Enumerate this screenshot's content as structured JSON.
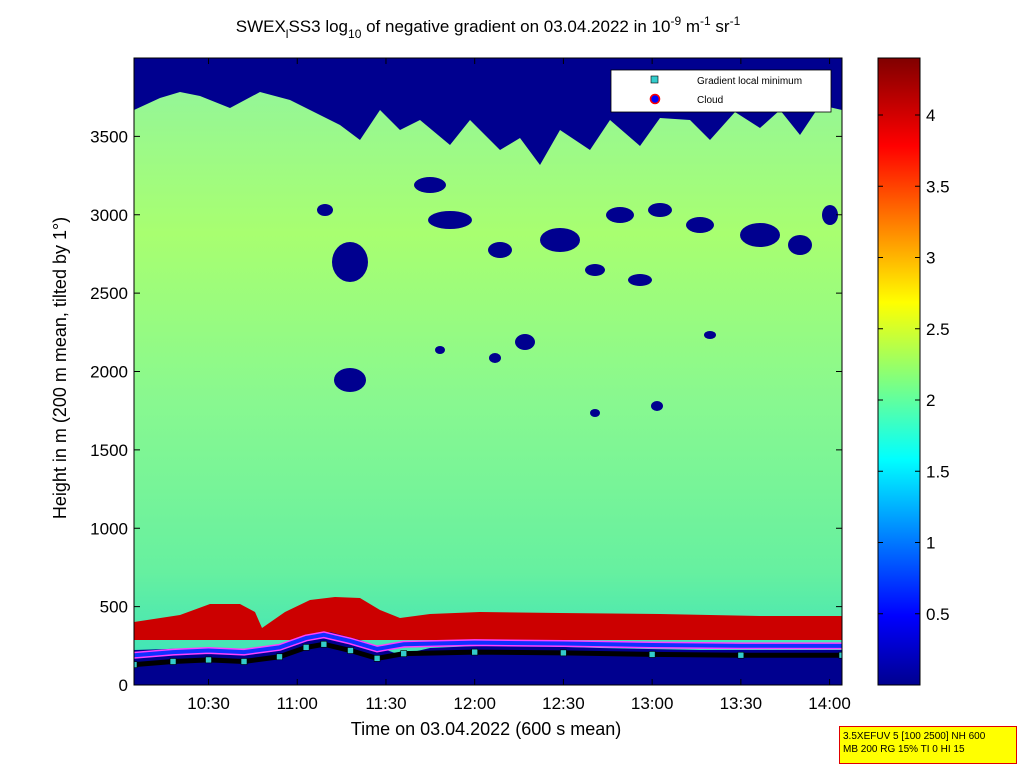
{
  "chart_data": {
    "type": "heatmap",
    "title": {
      "prefix": "SWEX",
      "subscript_1": "l",
      "mid": "SS3 log",
      "subscript_2": "10",
      "text": " of negative gradient on 03.04.2022 in 10",
      "superscript_1": "-9",
      "unit_mid": " m",
      "superscript_2": "-1",
      "unit_end": " sr",
      "superscript_3": "-1"
    },
    "xlabel": "Time on 03.04.2022 (600 s mean)",
    "ylabel": "Height in m (200 m mean, tilted by 1°)",
    "x_range_hours": [
      10.08,
      14.07
    ],
    "x_ticks": [
      {
        "label": "10:30",
        "value": 10.5
      },
      {
        "label": "11:00",
        "value": 11.0
      },
      {
        "label": "11:30",
        "value": 11.5
      },
      {
        "label": "12:00",
        "value": 12.0
      },
      {
        "label": "12:30",
        "value": 12.5
      },
      {
        "label": "13:00",
        "value": 13.0
      },
      {
        "label": "13:30",
        "value": 13.5
      },
      {
        "label": "14:00",
        "value": 14.0
      }
    ],
    "ylim": [
      0,
      4000
    ],
    "y_ticks": [
      {
        "label": "0",
        "value": 0
      },
      {
        "label": "500",
        "value": 500
      },
      {
        "label": "1000",
        "value": 1000
      },
      {
        "label": "1500",
        "value": 1500
      },
      {
        "label": "2000",
        "value": 2000
      },
      {
        "label": "2500",
        "value": 2500
      },
      {
        "label": "3000",
        "value": 3000
      },
      {
        "label": "3500",
        "value": 3500
      }
    ],
    "colorbar": {
      "range": [
        0,
        4.4
      ],
      "colormap": "jet",
      "ticks": [
        {
          "label": "0.5",
          "value": 0.5
        },
        {
          "label": "1",
          "value": 1.0
        },
        {
          "label": "1.5",
          "value": 1.5
        },
        {
          "label": "2",
          "value": 2.0
        },
        {
          "label": "2.5",
          "value": 2.5
        },
        {
          "label": "3",
          "value": 3.0
        },
        {
          "label": "3.5",
          "value": 3.5
        },
        {
          "label": "4",
          "value": 4.0
        }
      ]
    },
    "legend": {
      "placement": "top-right",
      "entries": [
        {
          "label": "Gradient local minimum",
          "marker": "square",
          "color": "#33cccc"
        },
        {
          "label": "Cloud",
          "marker": "circle",
          "color": "#0000ff",
          "edge": "#ff0000"
        }
      ]
    },
    "boundary_layer_height": {
      "x": [
        10.08,
        10.3,
        10.5,
        10.7,
        10.9,
        11.05,
        11.15,
        11.3,
        11.45,
        11.6,
        12.0,
        12.5,
        13.0,
        13.5,
        14.07
      ],
      "y": [
        190,
        210,
        220,
        210,
        240,
        300,
        320,
        280,
        230,
        260,
        270,
        265,
        255,
        250,
        250
      ]
    },
    "aerosol_layer_top": {
      "x": [
        10.08,
        10.4,
        10.6,
        10.75,
        10.9,
        11.1,
        11.25,
        11.35,
        11.5,
        12.0,
        13.0,
        14.07
      ],
      "y": [
        370,
        460,
        490,
        330,
        430,
        540,
        540,
        480,
        420,
        450,
        440,
        430
      ]
    }
  },
  "info_box": {
    "line1": "3.5XEFUV 5 [100 2500] NH 600",
    "line2": "MB 200 RG 15% TI 0 HI 15"
  }
}
